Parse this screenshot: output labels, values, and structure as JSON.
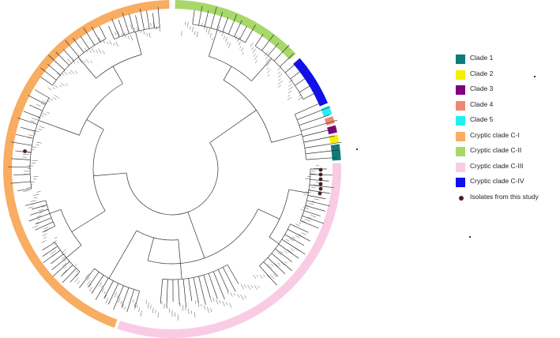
{
  "figure": {
    "type": "circular phylogenetic tree",
    "ring_segments": [
      {
        "clade": "Cryptic clade C-I",
        "color": "#f8ad62",
        "start_deg": 200,
        "end_deg": 359
      },
      {
        "clade": "Cryptic clade C-II",
        "color": "#a8d86a",
        "start_deg": 1,
        "end_deg": 47
      },
      {
        "clade": "Cryptic clade C-IV",
        "color": "#1010ee",
        "start_deg": 49,
        "end_deg": 67
      },
      {
        "clade": "Clade 5",
        "color": "#22f0f0",
        "start_deg": 68,
        "end_deg": 71
      },
      {
        "clade": "Clade 4",
        "color": "#f08870",
        "start_deg": 71.8,
        "end_deg": 74.2
      },
      {
        "clade": "Clade 3",
        "color": "#800080",
        "start_deg": 75,
        "end_deg": 77.5
      },
      {
        "clade": "Clade 2",
        "color": "#f6f000",
        "start_deg": 78.2,
        "end_deg": 80.8
      },
      {
        "clade": "Clade 1",
        "color": "#0f7b7b",
        "start_deg": 81.5,
        "end_deg": 87
      },
      {
        "clade": "Cryptic clade C-III",
        "color": "#f8cce4",
        "start_deg": 88,
        "end_deg": 199
      }
    ],
    "isolate_marker_color": "#4a2020"
  },
  "legend": {
    "items": [
      {
        "label": "Clade 1",
        "color": "#0f7b7b",
        "kind": "swatch"
      },
      {
        "label": "Clade 2",
        "color": "#f6f000",
        "kind": "swatch"
      },
      {
        "label": "Clade 3",
        "color": "#800080",
        "kind": "swatch"
      },
      {
        "label": "Clade 4",
        "color": "#f08870",
        "kind": "swatch"
      },
      {
        "label": "Clade 5",
        "color": "#22f0f0",
        "kind": "swatch"
      },
      {
        "label": "Cryptic clade C-I",
        "color": "#f8ad62",
        "kind": "swatch"
      },
      {
        "label": "Cryptic clade C-II",
        "color": "#a8d86a",
        "kind": "swatch"
      },
      {
        "label": "Cryptic clade C-III",
        "color": "#f8cce4",
        "kind": "swatch"
      },
      {
        "label": "Cryptic clade C-IV",
        "color": "#1010ee",
        "kind": "swatch"
      },
      {
        "label": "Isolates from this study",
        "color": "#4a2020",
        "kind": "dot"
      }
    ]
  }
}
